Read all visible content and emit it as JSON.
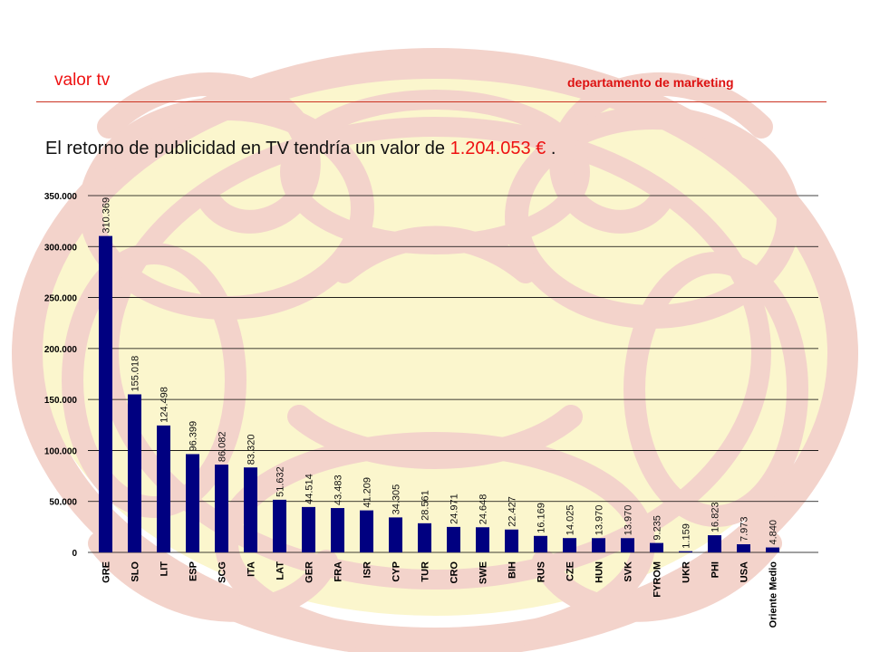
{
  "header": {
    "title": "valor tv",
    "department": "departamento de marketing"
  },
  "headline": {
    "prefix": "El retorno de publicidad en TV tendría un valor de",
    "value": "1.204.053 €",
    "suffix": "."
  },
  "colors": {
    "bar": "#000080",
    "accent_red": "#ee1111",
    "watermark_red": "#f2cfc6",
    "watermark_yellow": "#fbf6c8"
  },
  "chart_data": {
    "type": "bar",
    "categories": [
      "GRE",
      "SLO",
      "LIT",
      "ESP",
      "SCG",
      "ITA",
      "LAT",
      "GER",
      "FRA",
      "ISR",
      "CYP",
      "TUR",
      "CRO",
      "SWE",
      "BIH",
      "RUS",
      "CZE",
      "HUN",
      "SVK",
      "FYROM",
      "UKR",
      "PHI",
      "USA",
      "Oriente Medio"
    ],
    "values": [
      310369,
      155018,
      124498,
      96399,
      86082,
      83320,
      51632,
      44514,
      43483,
      41209,
      34305,
      28561,
      24971,
      24648,
      22427,
      16169,
      14025,
      13970,
      13970,
      9235,
      1159,
      16823,
      7973,
      4840
    ],
    "value_labels": [
      "310.369",
      "155.018",
      "124.498",
      "96.399",
      "86.082",
      "83.320",
      "51.632",
      "44.514",
      "43.483",
      "41.209",
      "34.305",
      "28.561",
      "24.971",
      "24.648",
      "22.427",
      "16.169",
      "14.025",
      "13.970",
      "13.970",
      "9.235",
      "1.159",
      "16.823",
      "7.973",
      "4.840"
    ],
    "ylim": [
      0,
      350000
    ],
    "yticks": [
      0,
      50000,
      100000,
      150000,
      200000,
      250000,
      300000,
      350000
    ],
    "ytick_labels": [
      "0",
      "50.000",
      "100.000",
      "150.000",
      "200.000",
      "250.000",
      "300.000",
      "350.000"
    ],
    "grid": true,
    "legend": "none",
    "title": "",
    "xlabel": "",
    "ylabel": ""
  }
}
